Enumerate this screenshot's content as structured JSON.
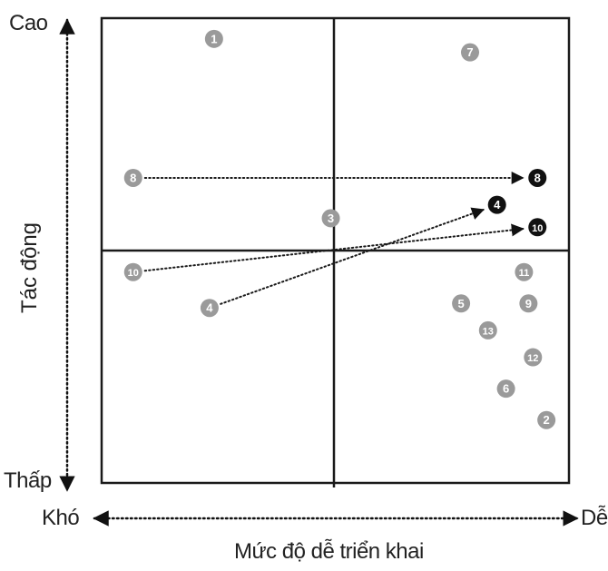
{
  "axes": {
    "y_high": "Cao",
    "y_low": "Thấp",
    "y_title": "Tác động",
    "x_low": "Khó",
    "x_high": "Dễ",
    "x_title": "Mức độ dễ triển khai"
  },
  "colors": {
    "grey_marker": "#9a9a9a",
    "black_marker": "#111111",
    "line": "#1a1a1a"
  },
  "markers": [
    {
      "label": "1",
      "x": 0.23,
      "y": 0.97,
      "style": "grey"
    },
    {
      "label": "7",
      "x": 0.8,
      "y": 0.94,
      "style": "grey"
    },
    {
      "label": "8",
      "x": 0.05,
      "y": 0.66,
      "style": "grey"
    },
    {
      "label": "8",
      "x": 0.95,
      "y": 0.66,
      "style": "black"
    },
    {
      "label": "3",
      "x": 0.49,
      "y": 0.57,
      "style": "grey"
    },
    {
      "label": "4",
      "x": 0.86,
      "y": 0.6,
      "style": "black"
    },
    {
      "label": "10",
      "x": 0.95,
      "y": 0.55,
      "style": "black"
    },
    {
      "label": "10",
      "x": 0.05,
      "y": 0.45,
      "style": "grey"
    },
    {
      "label": "4",
      "x": 0.22,
      "y": 0.37,
      "style": "grey"
    },
    {
      "label": "11",
      "x": 0.92,
      "y": 0.45,
      "style": "grey"
    },
    {
      "label": "5",
      "x": 0.78,
      "y": 0.38,
      "style": "grey"
    },
    {
      "label": "9",
      "x": 0.93,
      "y": 0.38,
      "style": "grey"
    },
    {
      "label": "13",
      "x": 0.84,
      "y": 0.32,
      "style": "grey"
    },
    {
      "label": "12",
      "x": 0.94,
      "y": 0.26,
      "style": "grey"
    },
    {
      "label": "6",
      "x": 0.88,
      "y": 0.19,
      "style": "grey"
    },
    {
      "label": "2",
      "x": 0.97,
      "y": 0.12,
      "style": "grey"
    }
  ],
  "arrows": [
    {
      "from": 2,
      "to": 3
    },
    {
      "from": 7,
      "to": 6
    },
    {
      "from": 8,
      "to": 5
    }
  ]
}
